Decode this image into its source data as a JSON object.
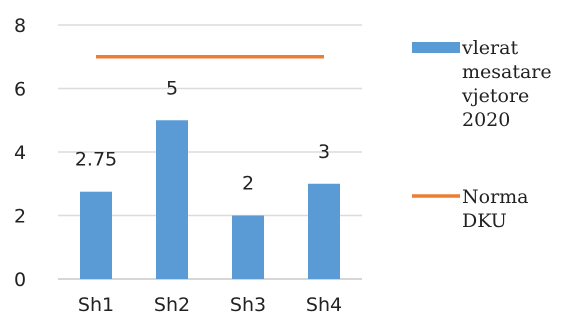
{
  "chart_data": {
    "type": "bar",
    "categories": [
      "Sh1",
      "Sh2",
      "Sh3",
      "Sh4"
    ],
    "series": [
      {
        "name": "vlerat mesatare vjetore 2020",
        "kind": "bar",
        "values": [
          2.75,
          5,
          2,
          3
        ],
        "data_labels": [
          "2.75",
          "5",
          "2",
          "3"
        ],
        "color": "#5b9bd5"
      },
      {
        "name": "Norma DKU",
        "kind": "line",
        "values": [
          7,
          7,
          7,
          7
        ],
        "color": "#ed7d31"
      }
    ],
    "ylim": [
      0,
      8
    ],
    "yticks": [
      0,
      2,
      4,
      6,
      8
    ],
    "grid": true,
    "legend_position": "right",
    "legend": [
      {
        "lines": [
          "vlerat",
          "mesatare",
          "vjetore",
          "2020"
        ]
      },
      {
        "lines": [
          "Norma",
          "DKU"
        ]
      }
    ]
  }
}
